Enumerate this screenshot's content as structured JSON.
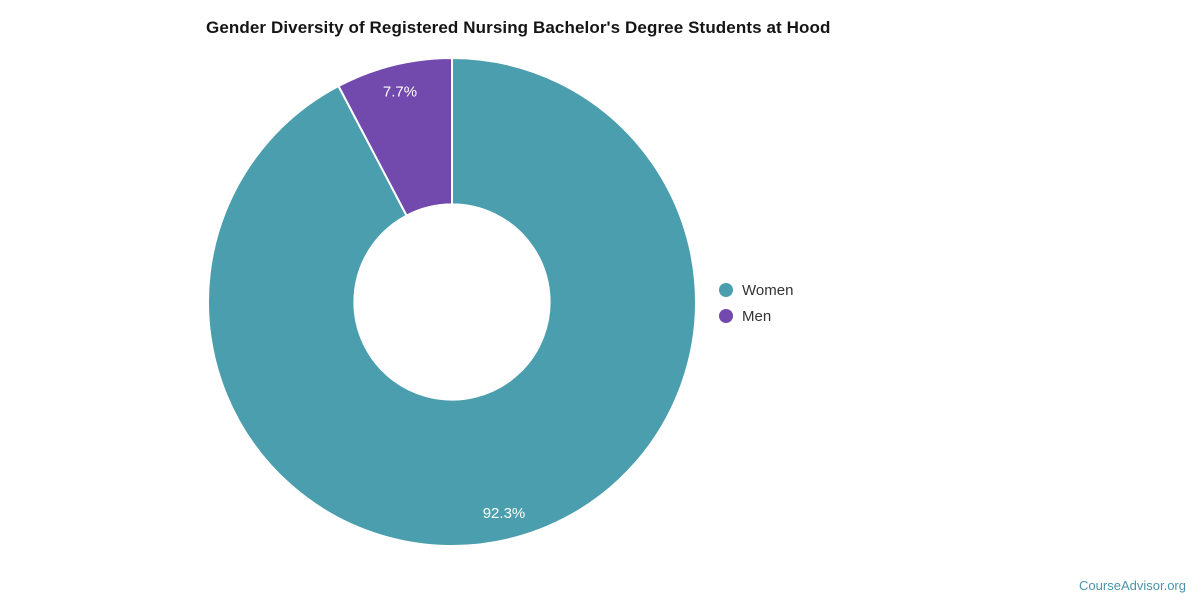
{
  "page": {
    "background": "#ffffff"
  },
  "chart_data": {
    "type": "pie",
    "style": "donut",
    "title": "Gender Diversity of Registered Nursing Bachelor's Degree Students at Hood",
    "categories": [
      "Women",
      "Men"
    ],
    "values": [
      92.3,
      7.7
    ],
    "slice_labels": [
      "92.3%",
      "7.7%"
    ],
    "colors": [
      "#4a9ead",
      "#7249ad"
    ],
    "slice_label_color": "#ffffff",
    "slice_stroke_color": "#ffffff",
    "donut_hole_ratio": 0.4,
    "start_angle_deg": 0,
    "direction": "clockwise",
    "legend_position": "right",
    "grid": "off"
  },
  "legend": {
    "items": [
      {
        "label": "Women",
        "color": "#4a9ead"
      },
      {
        "label": "Men",
        "color": "#7249ad"
      }
    ]
  },
  "footer": {
    "brand_label": "CourseAdvisor.org",
    "brand_color": "#4b93ab"
  }
}
